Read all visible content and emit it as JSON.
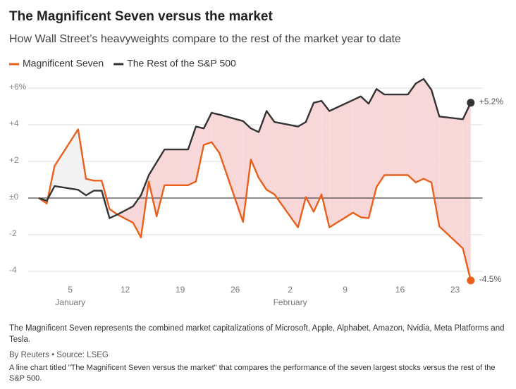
{
  "chart_data": {
    "type": "line",
    "title": "The Magnificent Seven versus the market",
    "subtitle": "How Wall Street’s heavyweights compare to the rest of the market year to date",
    "x": [
      1,
      2,
      3,
      6,
      7,
      8,
      9,
      10,
      11,
      13,
      14,
      15,
      16,
      17,
      20,
      21,
      22,
      23,
      24,
      27,
      28,
      29,
      30,
      31,
      34,
      35,
      36,
      37,
      38,
      41,
      42,
      43,
      44,
      45,
      48,
      49,
      50,
      51,
      52,
      55,
      56
    ],
    "series": [
      {
        "name": "Magnificent Seven",
        "color": "#e8601c",
        "end_label": "-4.5%",
        "values": [
          0,
          -0.3,
          1.75,
          3.75,
          1.05,
          0.95,
          0.95,
          -0.6,
          -0.9,
          -1.35,
          -2.15,
          0.9,
          -1.0,
          0.7,
          0.7,
          0.9,
          2.9,
          3.05,
          2.45,
          -1.3,
          2.1,
          1.1,
          0.45,
          0.2,
          -1.6,
          0.05,
          -0.75,
          0.2,
          -1.6,
          -0.8,
          -1.05,
          -1.1,
          0.6,
          1.25,
          1.25,
          0.85,
          1.05,
          0.85,
          -1.55,
          -2.75,
          -4.5
        ]
      },
      {
        "name": "The Rest of the S&P 500",
        "color": "#333333",
        "end_label": "+5.2%",
        "values": [
          0,
          -0.15,
          0.65,
          0.45,
          0.15,
          0.4,
          0.4,
          -1.1,
          -0.9,
          -0.45,
          0.15,
          1.25,
          1.95,
          2.65,
          2.65,
          3.9,
          3.8,
          4.65,
          4.55,
          4.2,
          3.8,
          3.6,
          4.75,
          4.15,
          3.9,
          4.15,
          5.2,
          5.3,
          4.75,
          5.35,
          5.55,
          5.15,
          5.95,
          5.65,
          5.65,
          6.25,
          6.5,
          5.9,
          4.45,
          4.3,
          5.2
        ]
      }
    ],
    "area_colors": {
      "above": "#f8d7d9",
      "below": "#f2f2f2"
    },
    "xlim": [
      0,
      57.5
    ],
    "xticks": [
      5,
      12,
      19,
      26,
      {
        "value": 33,
        "label": "2"
      },
      {
        "value": 40,
        "label": "9"
      },
      {
        "value": 47,
        "label": "16"
      },
      {
        "value": 54,
        "label": "23"
      }
    ],
    "months": [
      {
        "value": 5,
        "label": "January"
      },
      {
        "value": 33,
        "label": "February"
      }
    ],
    "ylim": [
      -4.5,
      6.5
    ],
    "yticks": [
      {
        "value": 6,
        "label": "+6%"
      },
      {
        "value": 4,
        "label": "+4"
      },
      {
        "value": 2,
        "label": "+2"
      },
      {
        "value": 0,
        "label": "±0"
      },
      -2,
      -4
    ],
    "grid": true,
    "note": "The Magnificent Seven represents the combined market capitalizations of Microsoft, Apple, Alphabet, Amazon, Nvidia, Meta Platforms and Tesla.",
    "source": "By Reuters • Source: LSEG",
    "description": "A line chart titled \"The Magnificent Seven versus the market\" that compares the performance of the seven largest stocks versus the rest of the S&P 500."
  }
}
